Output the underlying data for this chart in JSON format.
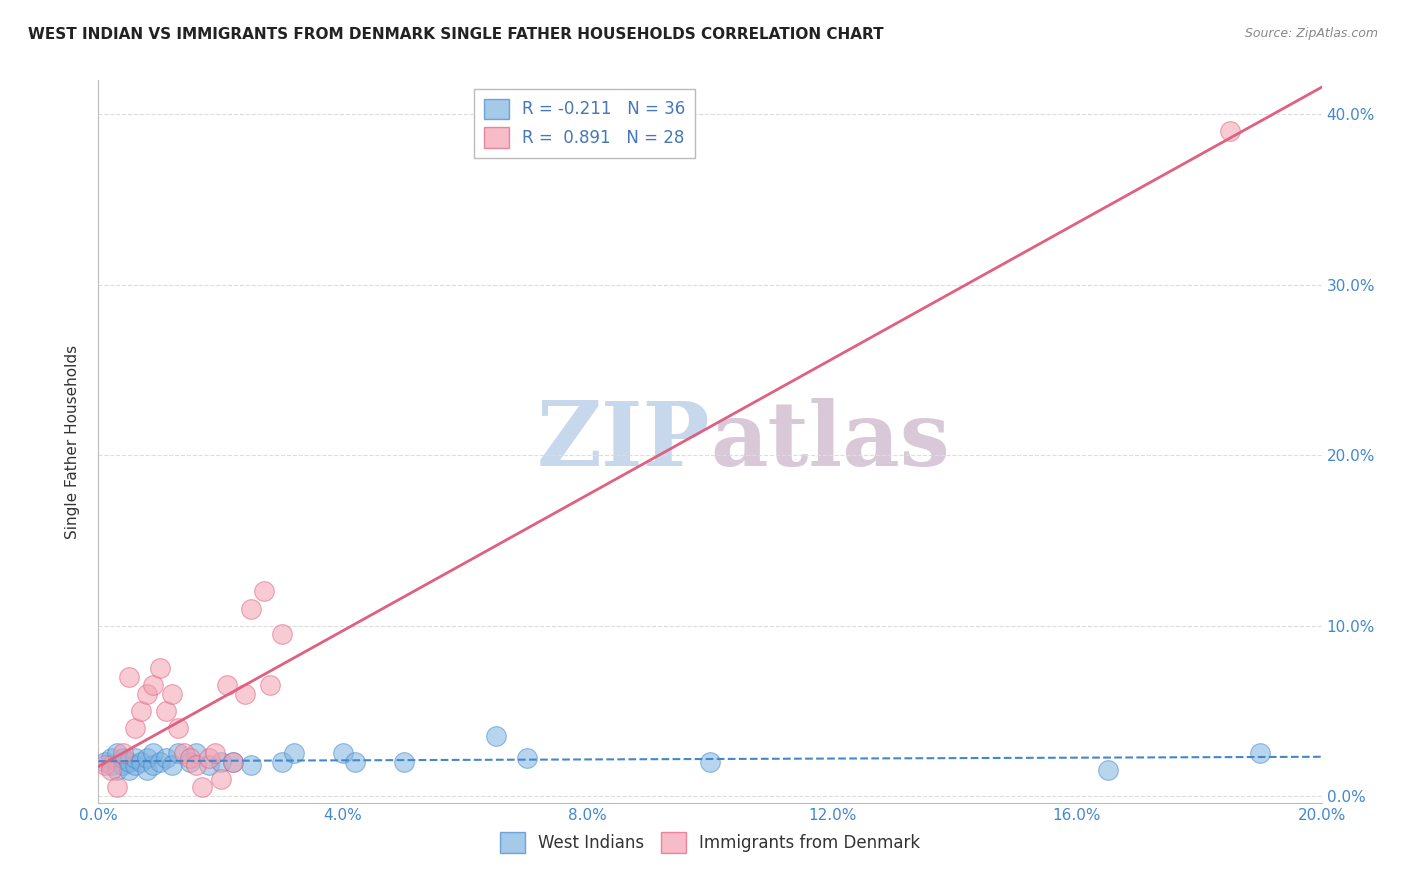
{
  "title": "WEST INDIAN VS IMMIGRANTS FROM DENMARK SINGLE FATHER HOUSEHOLDS CORRELATION CHART",
  "source": "Source: ZipAtlas.com",
  "ylabel": "Single Father Households",
  "xlim": [
    0.0,
    0.2
  ],
  "ylim": [
    -0.004,
    0.42
  ],
  "xticks": [
    0.0,
    0.04,
    0.08,
    0.12,
    0.16,
    0.2
  ],
  "yticks": [
    0.0,
    0.1,
    0.2,
    0.3,
    0.4
  ],
  "xtick_labels": [
    "0.0%",
    "4.0%",
    "8.0%",
    "12.0%",
    "16.0%",
    "20.0%"
  ],
  "ytick_labels": [
    "0.0%",
    "10.0%",
    "20.0%",
    "30.0%",
    "40.0%"
  ],
  "west_indians_color": "#7EB3E0",
  "denmark_color": "#F4A0B0",
  "west_indians_line_color": "#4488CC",
  "denmark_line_color": "#E06080",
  "watermark_part1": "ZIP",
  "watermark_part2": "atlas",
  "watermark_color1": "#C8D8EC",
  "watermark_color2": "#D8C8D8",
  "legend_r_west": "-0.211",
  "legend_n_west": "36",
  "legend_r_denmark": "0.891",
  "legend_n_denmark": "28",
  "west_indians_x": [
    0.001,
    0.002,
    0.002,
    0.003,
    0.003,
    0.004,
    0.004,
    0.005,
    0.005,
    0.006,
    0.006,
    0.007,
    0.008,
    0.008,
    0.009,
    0.009,
    0.01,
    0.011,
    0.012,
    0.013,
    0.015,
    0.016,
    0.018,
    0.02,
    0.022,
    0.025,
    0.03,
    0.032,
    0.04,
    0.042,
    0.05,
    0.065,
    0.07,
    0.1,
    0.165,
    0.19
  ],
  "west_indians_y": [
    0.02,
    0.018,
    0.022,
    0.015,
    0.025,
    0.018,
    0.022,
    0.015,
    0.02,
    0.018,
    0.022,
    0.02,
    0.015,
    0.022,
    0.018,
    0.025,
    0.02,
    0.022,
    0.018,
    0.025,
    0.02,
    0.025,
    0.018,
    0.02,
    0.02,
    0.018,
    0.02,
    0.025,
    0.025,
    0.02,
    0.02,
    0.035,
    0.022,
    0.02,
    0.015,
    0.025
  ],
  "denmark_x": [
    0.001,
    0.002,
    0.003,
    0.004,
    0.005,
    0.006,
    0.007,
    0.008,
    0.009,
    0.01,
    0.011,
    0.012,
    0.013,
    0.014,
    0.015,
    0.016,
    0.017,
    0.018,
    0.019,
    0.02,
    0.021,
    0.022,
    0.024,
    0.025,
    0.027,
    0.028,
    0.03,
    0.185
  ],
  "denmark_y": [
    0.018,
    0.015,
    0.005,
    0.025,
    0.07,
    0.04,
    0.05,
    0.06,
    0.065,
    0.075,
    0.05,
    0.06,
    0.04,
    0.025,
    0.022,
    0.018,
    0.005,
    0.022,
    0.025,
    0.01,
    0.065,
    0.02,
    0.06,
    0.11,
    0.12,
    0.065,
    0.095,
    0.39
  ]
}
